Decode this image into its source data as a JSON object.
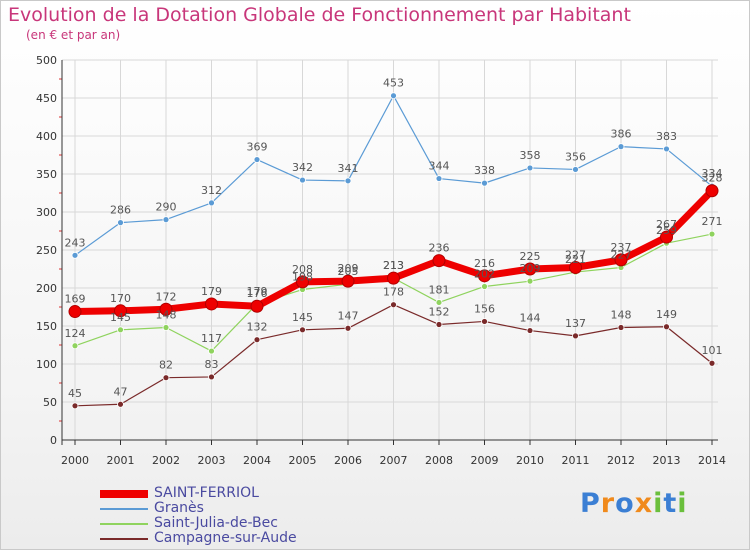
{
  "title": "Evolution de la Dotation Globale de Fonctionnement par Habitant",
  "subtitle": "(en € et par an)",
  "logo": {
    "text": "Proxiti",
    "letters": [
      "P",
      "r",
      "o",
      "x",
      "i",
      "t",
      "i"
    ],
    "colors": [
      "#3b7fd4",
      "#f08a1c",
      "#3b7fd4",
      "#f08a1c",
      "#6abf3c",
      "#3b7fd4",
      "#6abf3c"
    ]
  },
  "chart_data": {
    "type": "line",
    "title": "Evolution de la Dotation Globale de Fonctionnement par Habitant",
    "subtitle": "(en € et par an)",
    "xlabel": "",
    "ylabel": "",
    "ylim": [
      0,
      500
    ],
    "yticks": [
      0,
      50,
      100,
      150,
      200,
      250,
      300,
      350,
      400,
      450,
      500
    ],
    "x": [
      "2000",
      "2001",
      "2002",
      "2003",
      "2004",
      "2005",
      "2006",
      "2007",
      "2008",
      "2009",
      "2010",
      "2011",
      "2012",
      "2013",
      "2014"
    ],
    "grid": true,
    "legend_position": "bottom-left",
    "series": [
      {
        "name": "Granès",
        "color": "#5b9bd5",
        "width": 1.2,
        "marker": 3,
        "values": [
          243,
          286,
          290,
          312,
          369,
          342,
          341,
          453,
          344,
          338,
          358,
          356,
          386,
          383,
          334
        ]
      },
      {
        "name": "Saint-Julia-de-Bec",
        "color": "#8fd35e",
        "width": 1.2,
        "marker": 3,
        "values": [
          124,
          145,
          148,
          117,
          179,
          198,
          205,
          213,
          181,
          202,
          209,
          221,
          227,
          259,
          271
        ]
      },
      {
        "name": "Campagne-sur-Aude",
        "color": "#7a2a2a",
        "width": 1.2,
        "marker": 3,
        "values": [
          45,
          47,
          82,
          83,
          132,
          145,
          147,
          178,
          152,
          156,
          144,
          137,
          148,
          149,
          101
        ]
      },
      {
        "name": "SAINT-FERRIOL",
        "color": "#ee0000",
        "width": 7,
        "marker": 6,
        "values": [
          169,
          170,
          172,
          179,
          176,
          208,
          209,
          213,
          236,
          216,
          225,
          227,
          237,
          267,
          328
        ]
      }
    ],
    "legend_order": [
      "SAINT-FERRIOL",
      "Granès",
      "Saint-Julia-de-Bec",
      "Campagne-sur-Aude"
    ]
  }
}
